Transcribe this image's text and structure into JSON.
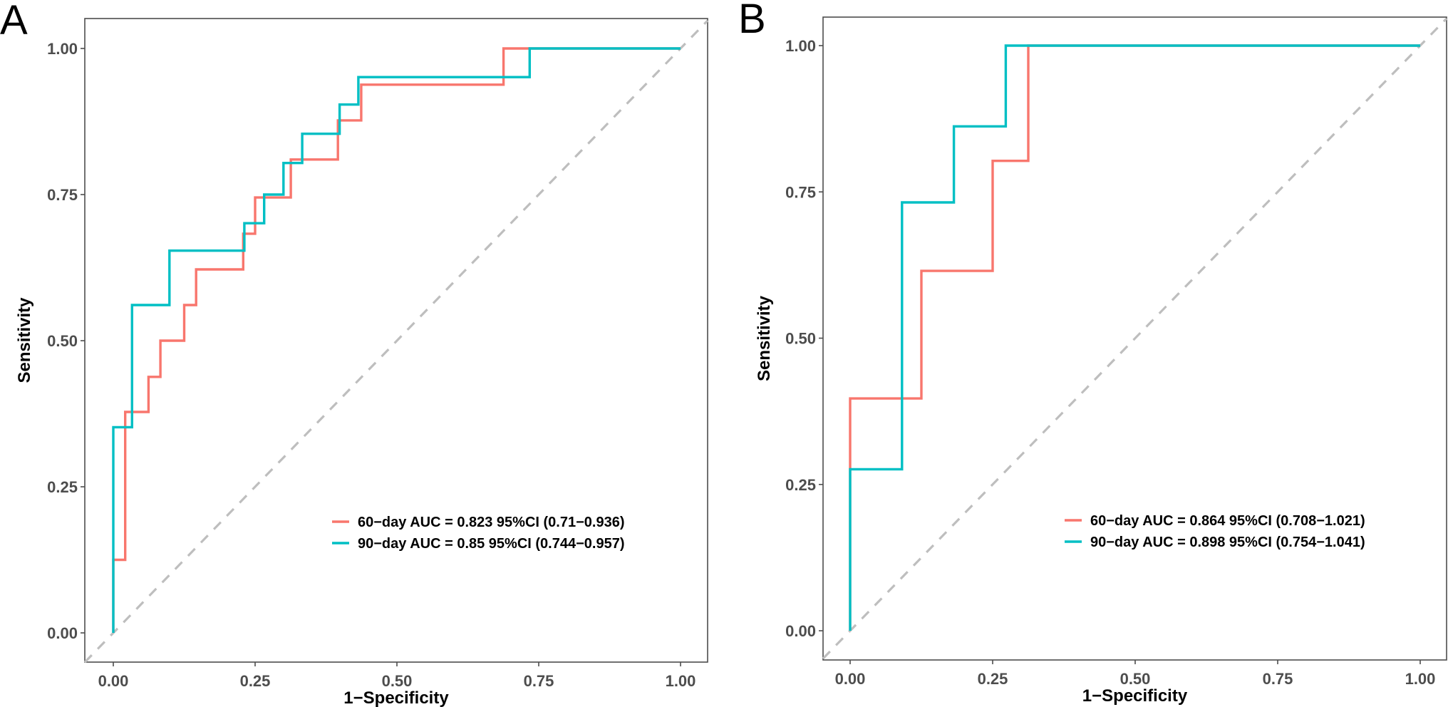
{
  "chart_data": [
    {
      "panel": "A",
      "type": "line",
      "subtype": "roc-step",
      "title": "",
      "xlabel": "1−Specificity",
      "ylabel": "Sensitivity",
      "xlim": [
        -0.05,
        1.05
      ],
      "ylim": [
        -0.05,
        1.05
      ],
      "xticks": [
        0,
        0.25,
        0.5,
        0.75,
        1
      ],
      "xtick_labels": [
        "0.00",
        "0.25",
        "0.50",
        "0.75",
        "1.00"
      ],
      "yticks": [
        0,
        0.25,
        0.5,
        0.75,
        1
      ],
      "ytick_labels": [
        "0.00",
        "0.25",
        "0.50",
        "0.75",
        "1.00"
      ],
      "grid": false,
      "reference_line": "diagonal dashed",
      "legend_position": "bottom-right",
      "series": [
        {
          "name": "60−day AUC = 0.823 95%CI (0.71−0.936)",
          "color": "#F8766D",
          "x": [
            0,
            0,
            0.021,
            0.021,
            0.062,
            0.062,
            0.083,
            0.083,
            0.125,
            0.125,
            0.146,
            0.146,
            0.229,
            0.229,
            0.25,
            0.25,
            0.313,
            0.313,
            0.396,
            0.396,
            0.437,
            0.437,
            0.688,
            0.688,
            1.0
          ],
          "y": [
            0,
            0.125,
            0.125,
            0.378,
            0.378,
            0.438,
            0.438,
            0.5,
            0.5,
            0.561,
            0.561,
            0.622,
            0.622,
            0.683,
            0.683,
            0.745,
            0.745,
            0.81,
            0.81,
            0.877,
            0.877,
            0.938,
            0.938,
            1.0,
            1.0
          ]
        },
        {
          "name": "90−day AUC = 0.85 95%CI (0.744−0.957)",
          "color": "#00BFC4",
          "x": [
            0,
            0,
            0.033,
            0.033,
            0.099,
            0.099,
            0.231,
            0.231,
            0.266,
            0.266,
            0.3,
            0.3,
            0.333,
            0.333,
            0.399,
            0.399,
            0.432,
            0.432,
            0.734,
            0.734,
            1.0
          ],
          "y": [
            0,
            0.352,
            0.352,
            0.561,
            0.561,
            0.654,
            0.654,
            0.701,
            0.701,
            0.75,
            0.75,
            0.804,
            0.804,
            0.854,
            0.854,
            0.904,
            0.904,
            0.951,
            0.951,
            1.0,
            1.0
          ]
        }
      ]
    },
    {
      "panel": "B",
      "type": "line",
      "subtype": "roc-step",
      "title": "",
      "xlabel": "1−Specificity",
      "ylabel": "Sensitivity",
      "xlim": [
        -0.05,
        1.05
      ],
      "ylim": [
        -0.05,
        1.05
      ],
      "xticks": [
        0,
        0.25,
        0.5,
        0.75,
        1
      ],
      "xtick_labels": [
        "0.00",
        "0.25",
        "0.50",
        "0.75",
        "1.00"
      ],
      "yticks": [
        0,
        0.25,
        0.5,
        0.75,
        1
      ],
      "ytick_labels": [
        "0.00",
        "0.25",
        "0.50",
        "0.75",
        "1.00"
      ],
      "grid": false,
      "reference_line": "diagonal dashed",
      "legend_position": "bottom-right",
      "series": [
        {
          "name": "60−day AUC = 0.864 95%CI (0.708−1.021)",
          "color": "#F8766D",
          "x": [
            0,
            0,
            0.125,
            0.125,
            0.25,
            0.25,
            0.3125,
            0.3125,
            1.0
          ],
          "y": [
            0,
            0.397,
            0.397,
            0.615,
            0.615,
            0.803,
            0.803,
            1.0,
            1.0
          ]
        },
        {
          "name": "90−day AUC = 0.898 95%CI (0.754−1.041)",
          "color": "#00BFC4",
          "x": [
            0,
            0,
            0.091,
            0.091,
            0.182,
            0.182,
            0.273,
            0.273,
            1.0
          ],
          "y": [
            0,
            0.276,
            0.276,
            0.732,
            0.732,
            0.862,
            0.862,
            1.0,
            1.0
          ]
        }
      ]
    }
  ],
  "panels": [
    {
      "letter": "A",
      "legend": [
        "60−day AUC = 0.823 95%CI (0.71−0.936)",
        "90−day AUC = 0.85 95%CI (0.744−0.957)"
      ]
    },
    {
      "letter": "B",
      "legend": [
        "60−day AUC = 0.864 95%CI (0.708−1.021)",
        "90−day AUC = 0.898 95%CI (0.754−1.041)"
      ]
    }
  ],
  "colors": {
    "series_60": "#F8766D",
    "series_90": "#00BFC4",
    "reference": "#BEBEBE",
    "frame": "#4d4d4d"
  }
}
